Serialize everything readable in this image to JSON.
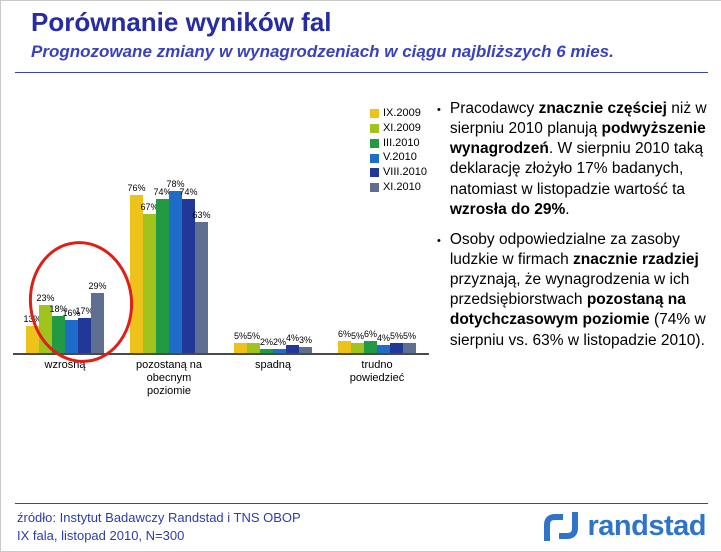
{
  "header": {
    "title": "Porównanie wyników fal",
    "subtitle": "Prognozowane zmiany w wynagrodzeniach w ciągu najbliższych 6 mies."
  },
  "chart_data": {
    "type": "bar",
    "title": "",
    "categories": [
      "wzrosną",
      "pozostaną na obecnym poziomie",
      "spadną",
      "trudno powiedzieć"
    ],
    "series": [
      {
        "name": "IX.2009",
        "color": "#EDC21B",
        "values": [
          13,
          76,
          5,
          6
        ]
      },
      {
        "name": "XI.2009",
        "color": "#A0C41C",
        "values": [
          23,
          67,
          5,
          5
        ]
      },
      {
        "name": "III.2010",
        "color": "#229A44",
        "values": [
          18,
          74,
          2,
          6
        ]
      },
      {
        "name": "V.2010",
        "color": "#1E6DC8",
        "values": [
          16,
          78,
          2,
          4
        ]
      },
      {
        "name": "VIII.2010",
        "color": "#223898",
        "values": [
          17,
          74,
          4,
          5
        ]
      },
      {
        "name": "XI.2010",
        "color": "#5E6F92",
        "values": [
          29,
          63,
          3,
          5
        ]
      }
    ],
    "value_suffix": "%",
    "ylim": [
      0,
      100
    ],
    "grid": false,
    "legend_position": "top-right",
    "annotation": "red ellipse highlighting the wzrosną category group"
  },
  "bullets": [
    {
      "segments": [
        {
          "text": "Pracodawcy ",
          "bold": false
        },
        {
          "text": "znacznie częściej",
          "bold": true
        },
        {
          "text": " niż w sierpniu 2010 planują ",
          "bold": false
        },
        {
          "text": "podwyższenie wynagrodzeń",
          "bold": true
        },
        {
          "text": ". W sierpniu 2010 taką deklarację złożyło 17% badanych, natomiast w listopadzie wartość ta ",
          "bold": false
        },
        {
          "text": "wzrosła do 29%",
          "bold": true
        },
        {
          "text": ".",
          "bold": false
        }
      ]
    },
    {
      "segments": [
        {
          "text": "Osoby odpowiedzialne za zasoby ludzkie w firmach ",
          "bold": false
        },
        {
          "text": "znacznie rzadziej",
          "bold": true
        },
        {
          "text": " przyznają, że wynagrodzenia w ich przedsiębiorstwach ",
          "bold": false
        },
        {
          "text": "pozostaną na dotychczasowym poziomie",
          "bold": true
        },
        {
          "text": " (74% w sierpniu vs. 63% w listopadzie 2010).",
          "bold": false
        }
      ]
    }
  ],
  "footer": {
    "source_line1": "źródło: Instytut Badawczy Randstad i TNS OBOP",
    "source_line2": "IX fala, listopad 2010, N=300",
    "logo_text": "randstad",
    "logo_color": "#2E74C9"
  }
}
